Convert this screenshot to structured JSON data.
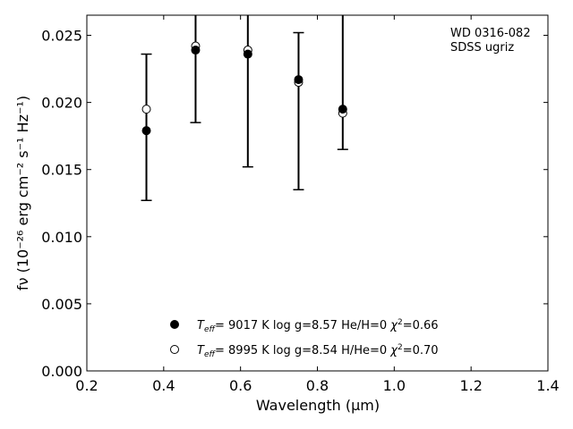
{
  "chart_data": {
    "type": "scatter",
    "title": "",
    "xlabel": "Wavelength (μm)",
    "ylabel": "fν (10⁻²⁶ erg cm⁻² s⁻¹ Hz⁻¹)",
    "xlim": [
      0.2,
      1.4
    ],
    "ylim": [
      0.0,
      0.0265
    ],
    "xticks": [
      "0.2",
      "0.4",
      "0.6",
      "0.8",
      "1.0",
      "1.2",
      "1.4"
    ],
    "xtick_values": [
      0.2,
      0.4,
      0.6,
      0.8,
      1.0,
      1.2,
      1.4
    ],
    "yticks": [
      "0.000",
      "0.005",
      "0.010",
      "0.015",
      "0.020",
      "0.025"
    ],
    "ytick_values": [
      0.0,
      0.005,
      0.01,
      0.015,
      0.02,
      0.025
    ],
    "grid": false,
    "legend_placement": "lower-center",
    "annotation": [
      "WD 0316-082",
      "SDSS ugriz"
    ],
    "observed": {
      "x": [
        0.355,
        0.483,
        0.619,
        0.751,
        0.866
      ],
      "errorbars": [
        {
          "low": 0.0127,
          "high": 0.0236
        },
        {
          "low": 0.0185,
          "high": 0.03
        },
        {
          "low": 0.0152,
          "high": 0.03
        },
        {
          "low": 0.0135,
          "high": 0.0252
        },
        {
          "low": 0.0165,
          "high": 0.03
        }
      ]
    },
    "series": [
      {
        "name": "Teff=  9017 K  log g=8.57  He/H=0  χ²=0.66",
        "marker": "filled-circle",
        "x": [
          0.355,
          0.483,
          0.619,
          0.751,
          0.866
        ],
        "y": [
          0.0179,
          0.0239,
          0.0236,
          0.0217,
          0.0195
        ]
      },
      {
        "name": "Teff=  8995 K  log g=8.54  H/He=0  χ²=0.70",
        "marker": "open-circle",
        "x": [
          0.355,
          0.483,
          0.619,
          0.751,
          0.866
        ],
        "y": [
          0.0195,
          0.0242,
          0.0239,
          0.0215,
          0.0192
        ]
      }
    ],
    "legend": [
      {
        "prefix": "T",
        "sub": "eff",
        "mid": "=  9017 K  log g=8.57  He/H=0  ",
        "chi": "χ",
        "sup": "2",
        "end": "=0.66"
      },
      {
        "prefix": "T",
        "sub": "eff",
        "mid": "=  8995 K  log g=8.54  H/He=0  ",
        "chi": "χ",
        "sup": "2",
        "end": "=0.70"
      }
    ]
  }
}
